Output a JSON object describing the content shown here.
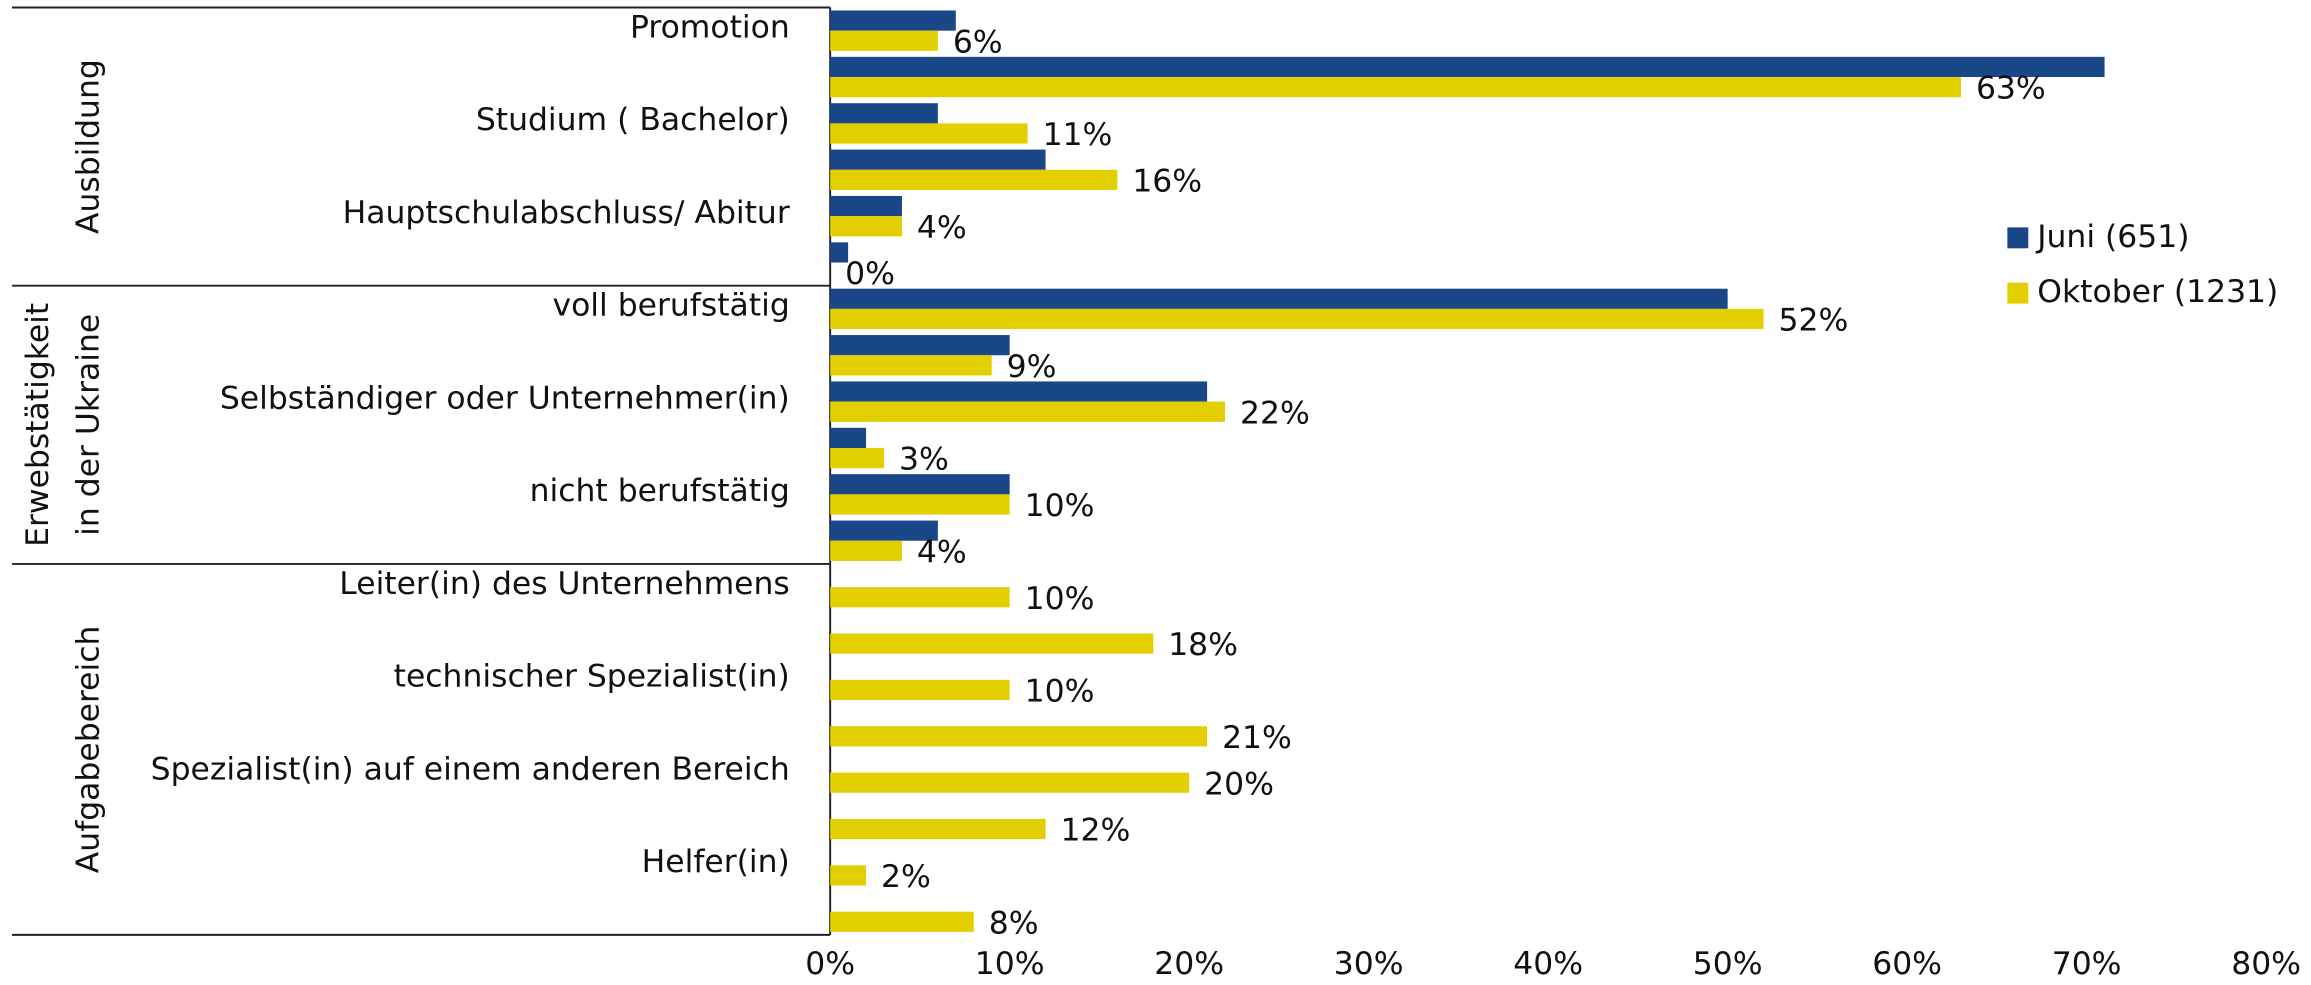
{
  "chart_data": {
    "type": "hbar",
    "categories": [
      "Promotion",
      null,
      "Studium  ( Bachelor)",
      null,
      "Hauptschulabschluss/ Abitur",
      null,
      "voll berufstätig",
      null,
      "Selbständiger oder Unternehmer(in)",
      null,
      "nicht berufstätig",
      null,
      "Leiter(in) des Unternehmens",
      null,
      "technischer Spezialist(in)",
      null,
      "Spezialist(in) auf einem anderen Bereich",
      null,
      "Helfer(in)",
      null
    ],
    "groups": [
      {
        "label": [
          "Ausbildung"
        ],
        "start": 0,
        "end": 5
      },
      {
        "label": [
          "Erwebstätigkeit",
          "in der Ukraine"
        ],
        "start": 6,
        "end": 11
      },
      {
        "label": [
          "Aufgabebereich"
        ],
        "start": 12,
        "end": 19
      }
    ],
    "series": [
      {
        "name": "Juni (651)",
        "color": "#1a4788",
        "values": [
          7,
          71,
          6,
          12,
          4,
          1,
          50,
          10,
          21,
          2,
          10,
          6,
          null,
          null,
          null,
          null,
          null,
          null,
          null,
          null
        ]
      },
      {
        "name": "Oktober (1231)",
        "color": "#e3cf00",
        "values": [
          6,
          63,
          11,
          16,
          4,
          0,
          52,
          9,
          22,
          3,
          10,
          4,
          10,
          18,
          10,
          21,
          20,
          12,
          2,
          8
        ],
        "value_labels": [
          "6%",
          "63%",
          "11%",
          "16%",
          "4%",
          "0%",
          "52%",
          "9%",
          "22%",
          "3%",
          "10%",
          "4%",
          "10%",
          "18%",
          "10%",
          "21%",
          "20%",
          "12%",
          "2%",
          "8%"
        ]
      }
    ],
    "xlim": [
      0,
      80
    ],
    "xticks": [
      {
        "value": 0,
        "label": "0%"
      },
      {
        "value": 10,
        "label": "10%"
      },
      {
        "value": 20,
        "label": "20%"
      },
      {
        "value": 30,
        "label": "30%"
      },
      {
        "value": 40,
        "label": "40%"
      },
      {
        "value": 50,
        "label": "50%"
      },
      {
        "value": 60,
        "label": "60%"
      },
      {
        "value": 70,
        "label": "70%"
      },
      {
        "value": 80,
        "label": "80%"
      }
    ],
    "legend": "right"
  }
}
